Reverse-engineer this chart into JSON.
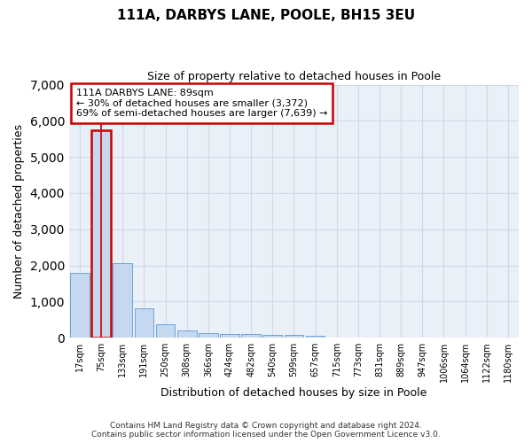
{
  "title": "111A, DARBYS LANE, POOLE, BH15 3EU",
  "subtitle": "Size of property relative to detached houses in Poole",
  "xlabel": "Distribution of detached houses by size in Poole",
  "ylabel": "Number of detached properties",
  "categories": [
    "17sqm",
    "75sqm",
    "133sqm",
    "191sqm",
    "250sqm",
    "308sqm",
    "366sqm",
    "424sqm",
    "482sqm",
    "540sqm",
    "599sqm",
    "657sqm",
    "715sqm",
    "773sqm",
    "831sqm",
    "889sqm",
    "947sqm",
    "1006sqm",
    "1064sqm",
    "1122sqm",
    "1180sqm"
  ],
  "values": [
    1780,
    5750,
    2060,
    820,
    360,
    210,
    120,
    100,
    95,
    80,
    65,
    55,
    0,
    0,
    0,
    0,
    0,
    0,
    0,
    0,
    0
  ],
  "bar_color": "#c5d8f0",
  "bar_edge_color": "#5b9bd5",
  "highlight_bar_index": 1,
  "highlight_edge_color": "#cc0000",
  "property_label": "111A DARBYS LANE: 89sqm",
  "annotation_line1": "← 30% of detached houses are smaller (3,372)",
  "annotation_line2": "69% of semi-detached houses are larger (7,639) →",
  "annotation_box_color": "#ffffff",
  "annotation_box_edge_color": "#cc0000",
  "ylim": [
    0,
    7000
  ],
  "yticks": [
    0,
    1000,
    2000,
    3000,
    4000,
    5000,
    6000,
    7000
  ],
  "grid_color": "#d0d8e8",
  "background_color": "#eaf0f8",
  "footer_line1": "Contains HM Land Registry data © Crown copyright and database right 2024.",
  "footer_line2": "Contains public sector information licensed under the Open Government Licence v3.0."
}
